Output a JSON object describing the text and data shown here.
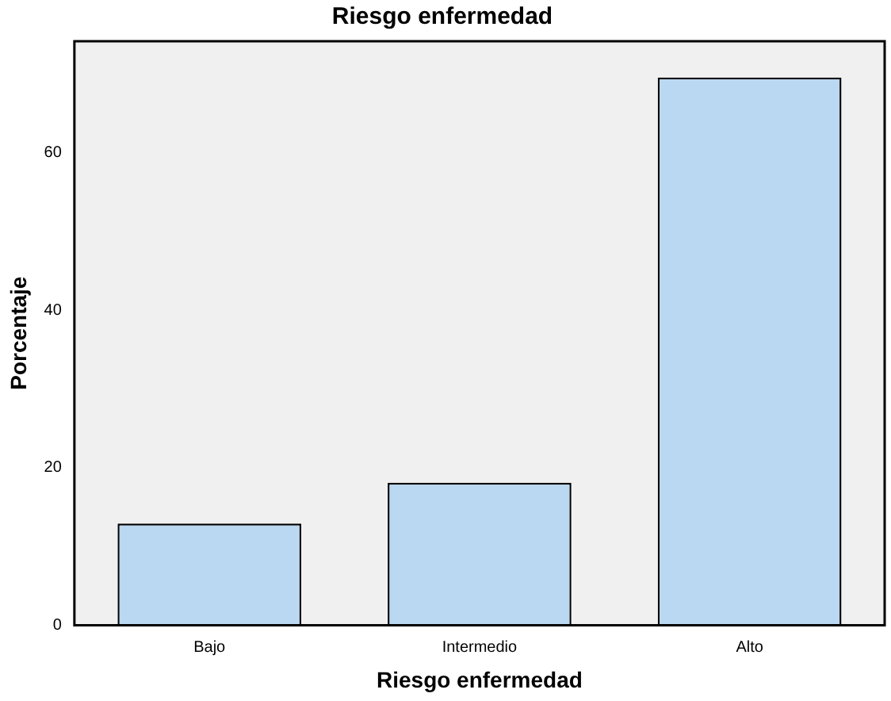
{
  "chart_data": {
    "type": "bar",
    "title": "Riesgo enfermedad",
    "xlabel": "Riesgo enfermedad",
    "ylabel": "Porcentaje",
    "categories": [
      "Bajo",
      "Intermedio",
      "Alto"
    ],
    "values": [
      12.9,
      18.1,
      69.6
    ],
    "color": "#bad8f1",
    "ylim": [
      0,
      74.2
    ],
    "yticks": [
      0,
      20,
      40,
      60
    ],
    "grid": false,
    "legend": false
  }
}
